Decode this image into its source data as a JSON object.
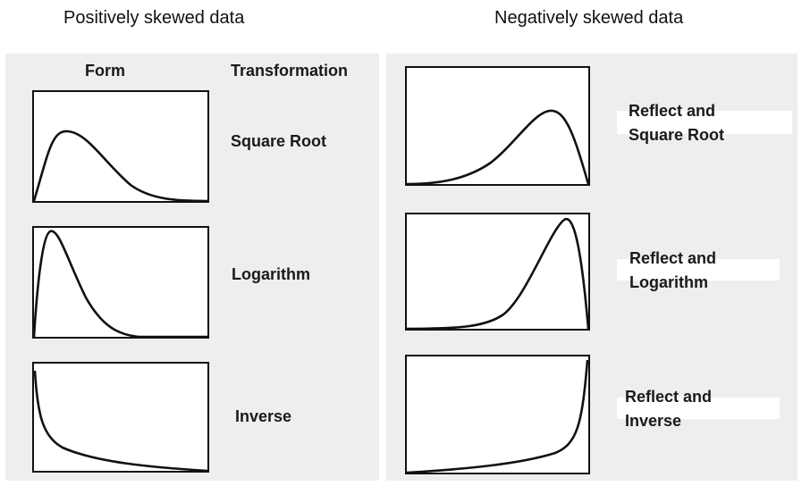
{
  "headings": {
    "positive": "Positively skewed data",
    "negative": "Negatively skewed data"
  },
  "left_panel": {
    "col_form": "Form",
    "col_transformation": "Transformation",
    "rows": [
      {
        "transformation": "Square Root",
        "curve": "moderate-positive-skew"
      },
      {
        "transformation": "Logarithm",
        "curve": "strong-positive-skew"
      },
      {
        "transformation": "Inverse",
        "curve": "severe-positive-skew-j-shape"
      }
    ]
  },
  "right_panel": {
    "rows": [
      {
        "line1": "Reflect and",
        "line2": "Square Root",
        "curve": "moderate-negative-skew"
      },
      {
        "line1": "Reflect and",
        "line2": "Logarithm",
        "curve": "strong-negative-skew"
      },
      {
        "line1": "Reflect and",
        "line2": "Inverse",
        "curve": "severe-negative-skew-j-shape"
      }
    ]
  },
  "colors": {
    "panel_bg": "#eeeeee",
    "box_bg": "#ffffff",
    "stroke": "#111111"
  }
}
